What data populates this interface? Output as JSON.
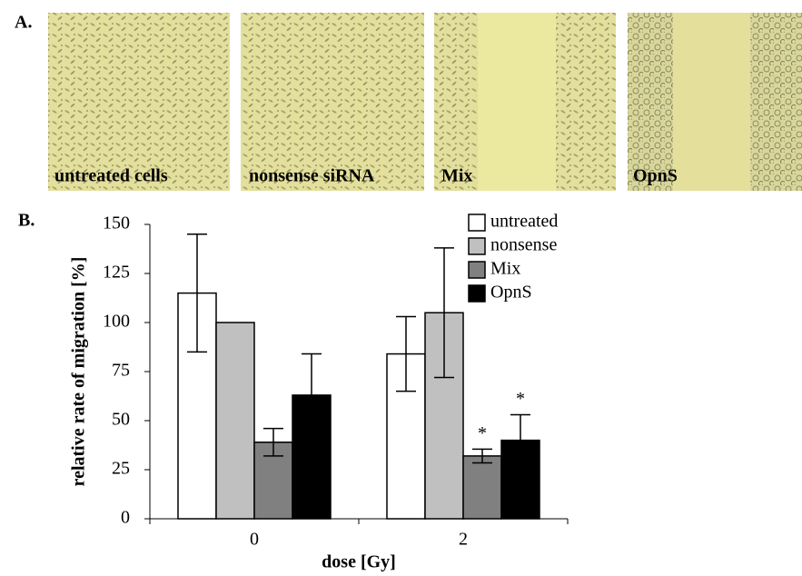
{
  "figure": {
    "panel_labels": [
      "A.",
      "B."
    ],
    "image_captions": [
      "untreated cells",
      "nonsense siRNA",
      "Mix",
      "OpnS"
    ]
  },
  "chart_data": {
    "type": "bar",
    "x_label": "dose [Gy]",
    "y_label": "relative rate of migration [%]",
    "categories": [
      "0",
      "2"
    ],
    "series": [
      {
        "name": "untreated",
        "color": "#ffffff",
        "values": [
          115,
          84
        ],
        "errors": [
          30,
          19
        ],
        "markers": [
          null,
          null
        ]
      },
      {
        "name": "nonsense",
        "color": "#c0c0c0",
        "values": [
          100,
          105
        ],
        "errors": [
          null,
          33
        ],
        "markers": [
          null,
          null
        ]
      },
      {
        "name": "Mix",
        "color": "#808080",
        "values": [
          39,
          32
        ],
        "errors": [
          7,
          3.5
        ],
        "markers": [
          null,
          "*"
        ]
      },
      {
        "name": "OpnS",
        "color": "#000000",
        "values": [
          63,
          40
        ],
        "errors": [
          21,
          13
        ],
        "markers": [
          null,
          "*"
        ]
      }
    ],
    "ylim": [
      0,
      150
    ],
    "yticks": [
      0,
      25,
      50,
      75,
      100,
      125,
      150
    ],
    "grid": false
  }
}
